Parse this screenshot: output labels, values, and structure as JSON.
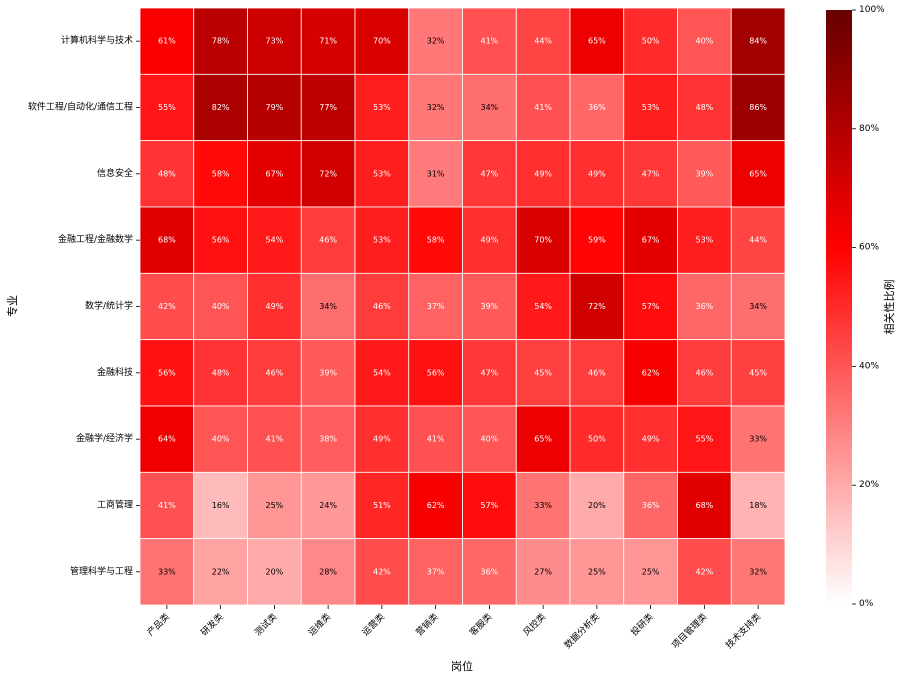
{
  "chart_data": {
    "type": "heatmap",
    "xlabel": "岗位",
    "ylabel": "专业",
    "colorbar_label": "相关性比例",
    "colorbar_ticks": [
      "0%",
      "20%",
      "40%",
      "60%",
      "80%",
      "100%"
    ],
    "colorbar_range": [
      0,
      100
    ],
    "columns": [
      "产品类",
      "研发类",
      "测试类",
      "运维类",
      "运营类",
      "营销类",
      "客服类",
      "风控类",
      "数据分析类",
      "投研类",
      "项目管理类",
      "技术支持类"
    ],
    "rows": [
      "计算机科学与技术",
      "软件工程/自动化/通信工程",
      "信息安全",
      "金融工程/金融数学",
      "数学/统计学",
      "金融科技",
      "金融学/经济学",
      "工商管理",
      "管理科学与工程"
    ],
    "values": [
      [
        61,
        78,
        73,
        71,
        70,
        32,
        41,
        44,
        65,
        50,
        40,
        84
      ],
      [
        55,
        82,
        79,
        77,
        53,
        32,
        34,
        41,
        36,
        53,
        48,
        86
      ],
      [
        48,
        58,
        67,
        72,
        53,
        31,
        47,
        49,
        49,
        47,
        39,
        65
      ],
      [
        68,
        56,
        54,
        46,
        53,
        58,
        49,
        70,
        59,
        67,
        53,
        44
      ],
      [
        42,
        40,
        49,
        34,
        46,
        37,
        39,
        54,
        72,
        57,
        36,
        34
      ],
      [
        56,
        48,
        46,
        39,
        54,
        56,
        47,
        45,
        46,
        62,
        46,
        45
      ],
      [
        64,
        40,
        41,
        38,
        49,
        41,
        40,
        65,
        50,
        49,
        55,
        33
      ],
      [
        41,
        16,
        25,
        24,
        51,
        62,
        57,
        33,
        20,
        36,
        68,
        18
      ],
      [
        33,
        22,
        20,
        28,
        42,
        37,
        36,
        27,
        25,
        25,
        42,
        32
      ]
    ],
    "value_suffix": "%",
    "colors": {
      "low": "#ffffff",
      "mid": "#ff0000",
      "high": "#660000"
    }
  }
}
